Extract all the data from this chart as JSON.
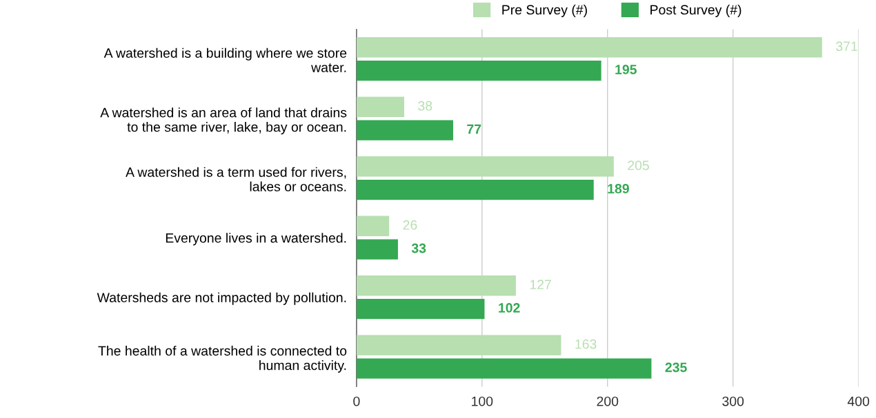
{
  "chart_data": {
    "type": "bar",
    "orientation": "horizontal",
    "categories": [
      "A watershed is a building where we store water.",
      "A watershed is an area of land that drains to the same river, lake, bay or ocean.",
      "A watershed is a term used for rivers, lakes or oceans.",
      "Everyone lives in a watershed.",
      "Watersheds are not impacted by pollution.",
      "The health of a watershed is connected to human activity."
    ],
    "series": [
      {
        "name": "Pre Survey (#)",
        "color": "#b7dfb0",
        "values": [
          371,
          38,
          205,
          26,
          127,
          163
        ]
      },
      {
        "name": "Post Survey (#)",
        "color": "#34a853",
        "values": [
          195,
          77,
          189,
          33,
          102,
          235
        ]
      }
    ],
    "xlim": [
      0,
      400
    ],
    "xticks": [
      0,
      100,
      200,
      300,
      400
    ],
    "grid": "x",
    "legend": "top",
    "data_labels": true
  }
}
